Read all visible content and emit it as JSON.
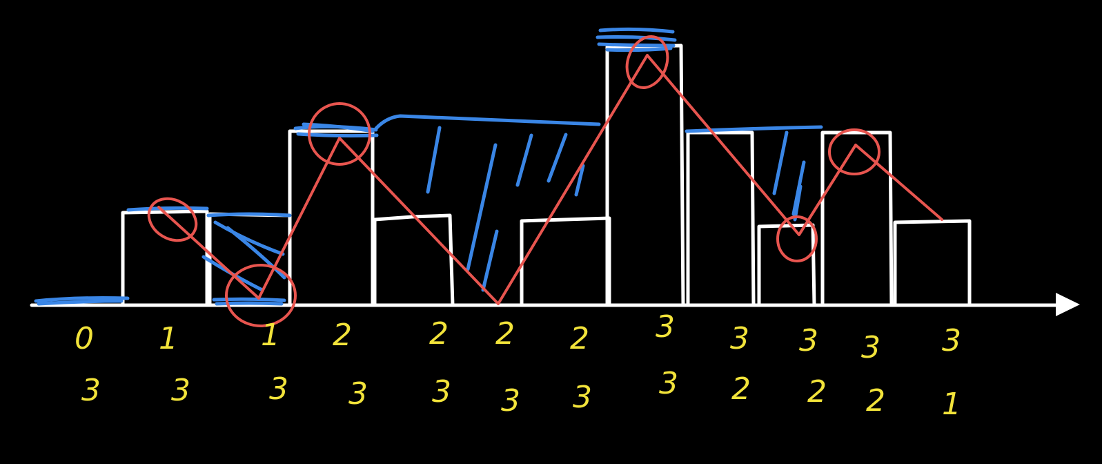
{
  "colors": {
    "background": "#000000",
    "bars": "#ffffff",
    "water": "#3a86e6",
    "path": "#e8554f",
    "labels": "#f2e33a"
  },
  "diagram": {
    "bar_heights": [
      0,
      1,
      1,
      2,
      1,
      0,
      1,
      3,
      2,
      1,
      2,
      1
    ],
    "left_max_row": [
      "0",
      "1",
      "1",
      "2",
      "2",
      "2",
      "2",
      "3",
      "3",
      "3",
      "3",
      "3"
    ],
    "right_max_row": [
      "3",
      "3",
      "3",
      "3",
      "3",
      "3",
      "3",
      "3",
      "2",
      "2",
      "2",
      "1"
    ]
  }
}
